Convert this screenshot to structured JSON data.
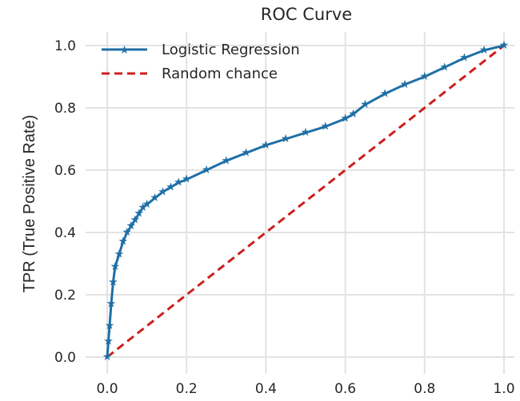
{
  "chart_data": {
    "type": "line",
    "title": "ROC Curve",
    "xlabel": "",
    "ylabel": "TPR (True Positive Rate)",
    "xlim": [
      0.0,
      1.0
    ],
    "ylim": [
      0.0,
      1.0
    ],
    "xticks": [
      "0.0",
      "0.2",
      "0.4",
      "0.6",
      "0.8",
      "1.0"
    ],
    "yticks": [
      "0.0",
      "0.2",
      "0.4",
      "0.6",
      "0.8",
      "1.0"
    ],
    "grid": true,
    "legend_position": "top-left",
    "series": [
      {
        "name": "Logistic Regression",
        "color": "#1f6fa6",
        "style": "solid",
        "marker": "star",
        "x": [
          0.0,
          0.003,
          0.006,
          0.01,
          0.015,
          0.02,
          0.03,
          0.04,
          0.05,
          0.06,
          0.07,
          0.08,
          0.09,
          0.1,
          0.12,
          0.14,
          0.16,
          0.18,
          0.2,
          0.25,
          0.3,
          0.35,
          0.4,
          0.45,
          0.5,
          0.55,
          0.6,
          0.62,
          0.65,
          0.7,
          0.75,
          0.8,
          0.85,
          0.9,
          0.95,
          1.0
        ],
        "y": [
          0.0,
          0.05,
          0.1,
          0.17,
          0.24,
          0.29,
          0.33,
          0.37,
          0.4,
          0.42,
          0.44,
          0.46,
          0.48,
          0.49,
          0.51,
          0.53,
          0.545,
          0.56,
          0.57,
          0.6,
          0.63,
          0.655,
          0.68,
          0.7,
          0.72,
          0.74,
          0.765,
          0.78,
          0.81,
          0.845,
          0.875,
          0.9,
          0.93,
          0.96,
          0.985,
          1.0
        ]
      },
      {
        "name": "Random chance",
        "color": "#cc1f1f",
        "style": "dashed",
        "x": [
          0.0,
          1.0
        ],
        "y": [
          0.0,
          1.0
        ]
      }
    ]
  }
}
